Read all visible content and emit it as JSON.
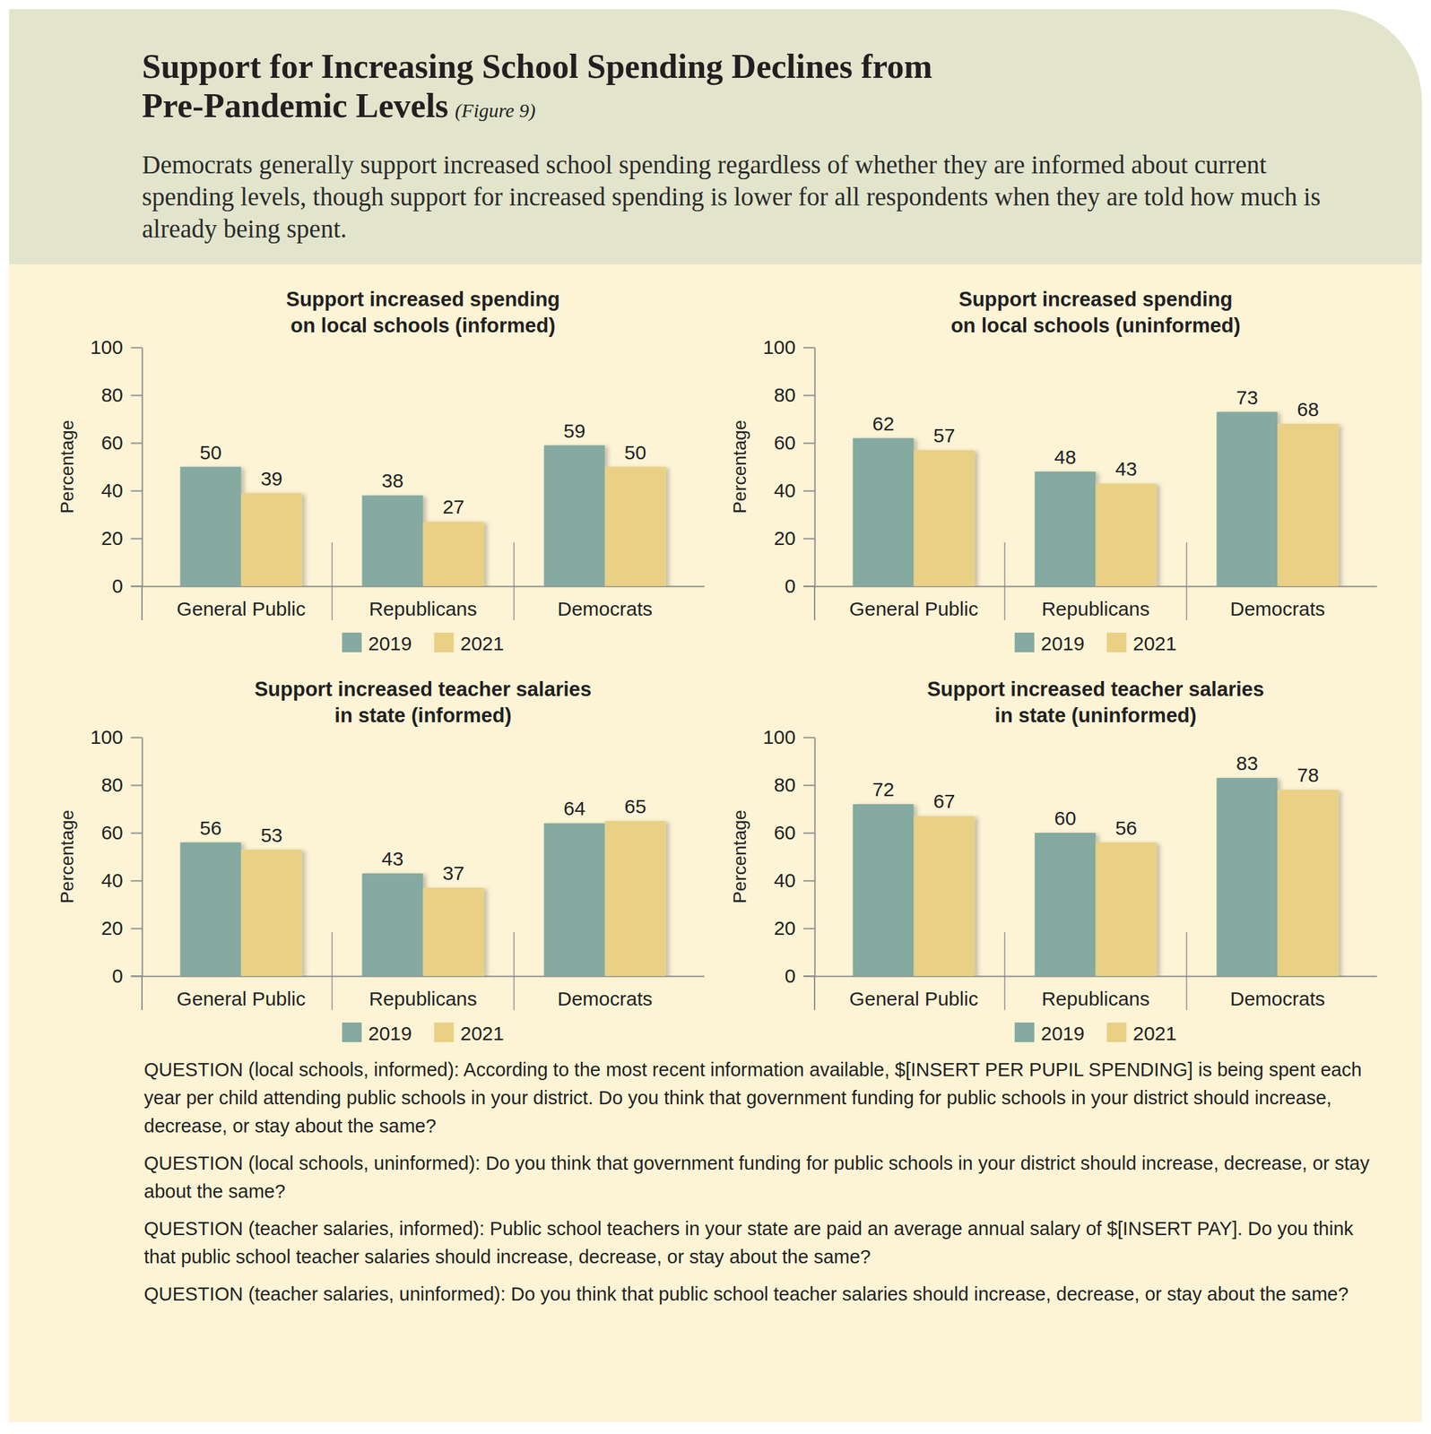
{
  "header": {
    "title": "Support for Increasing School Spending Declines from\nPre-Pandemic Levels",
    "figure_label": "(Figure 9)",
    "subtitle": "Democrats generally support increased school spending regardless of whether they are informed about current spending levels, though support for increased spending is lower for all respondents when they are told how much is already being spent."
  },
  "chart_data": [
    {
      "type": "bar",
      "title": "Support increased spending\non local schools (informed)",
      "ylabel": "Percentage",
      "categories": [
        "General Public",
        "Republicans",
        "Democrats"
      ],
      "series": [
        {
          "name": "2019",
          "color": "#84aaa1",
          "values": [
            50,
            38,
            59
          ]
        },
        {
          "name": "2021",
          "color": "#e9d085",
          "values": [
            39,
            27,
            50
          ]
        }
      ],
      "ylim": [
        0,
        100
      ],
      "yticks": [
        0,
        20,
        40,
        60,
        80,
        100
      ],
      "grid": false,
      "legend": "bottom",
      "data_labels": true
    },
    {
      "type": "bar",
      "title": "Support increased spending\non local schools (uninformed)",
      "ylabel": "Percentage",
      "categories": [
        "General Public",
        "Republicans",
        "Democrats"
      ],
      "series": [
        {
          "name": "2019",
          "color": "#84aaa1",
          "values": [
            62,
            48,
            73
          ]
        },
        {
          "name": "2021",
          "color": "#e9d085",
          "values": [
            57,
            43,
            68
          ]
        }
      ],
      "ylim": [
        0,
        100
      ],
      "yticks": [
        0,
        20,
        40,
        60,
        80,
        100
      ],
      "grid": false,
      "legend": "bottom",
      "data_labels": true
    },
    {
      "type": "bar",
      "title": "Support increased teacher salaries\nin state (informed)",
      "ylabel": "Percentage",
      "categories": [
        "General Public",
        "Republicans",
        "Democrats"
      ],
      "series": [
        {
          "name": "2019",
          "color": "#84aaa1",
          "values": [
            56,
            43,
            64
          ]
        },
        {
          "name": "2021",
          "color": "#e9d085",
          "values": [
            53,
            37,
            65
          ]
        }
      ],
      "ylim": [
        0,
        100
      ],
      "yticks": [
        0,
        20,
        40,
        60,
        80,
        100
      ],
      "grid": false,
      "legend": "bottom",
      "data_labels": true
    },
    {
      "type": "bar",
      "title": "Support increased teacher salaries\nin state (uninformed)",
      "ylabel": "Percentage",
      "categories": [
        "General Public",
        "Republicans",
        "Democrats"
      ],
      "series": [
        {
          "name": "2019",
          "color": "#84aaa1",
          "values": [
            72,
            60,
            83
          ]
        },
        {
          "name": "2021",
          "color": "#e9d085",
          "values": [
            67,
            56,
            78
          ]
        }
      ],
      "ylim": [
        0,
        100
      ],
      "yticks": [
        0,
        20,
        40,
        60,
        80,
        100
      ],
      "grid": false,
      "legend": "bottom",
      "data_labels": true
    }
  ],
  "questions": [
    "QUESTION (local schools, informed): According to the most recent information available, $[INSERT PER PUPIL SPENDING] is being spent each year per child attending public schools in your district. Do you think that government funding for public schools in your district should increase, decrease, or stay about the same?",
    "QUESTION (local schools, uninformed): Do you think that government funding for public schools in your district should increase, decrease, or stay about the same?",
    "QUESTION (teacher salaries, informed): Public school teachers in your state are paid an average annual salary of $[INSERT PAY]. Do you think that public school teacher salaries should increase, decrease, or stay about the same?",
    "QUESTION (teacher salaries, uninformed): Do you think that public school teacher salaries should increase, decrease, or stay about the same?"
  ]
}
